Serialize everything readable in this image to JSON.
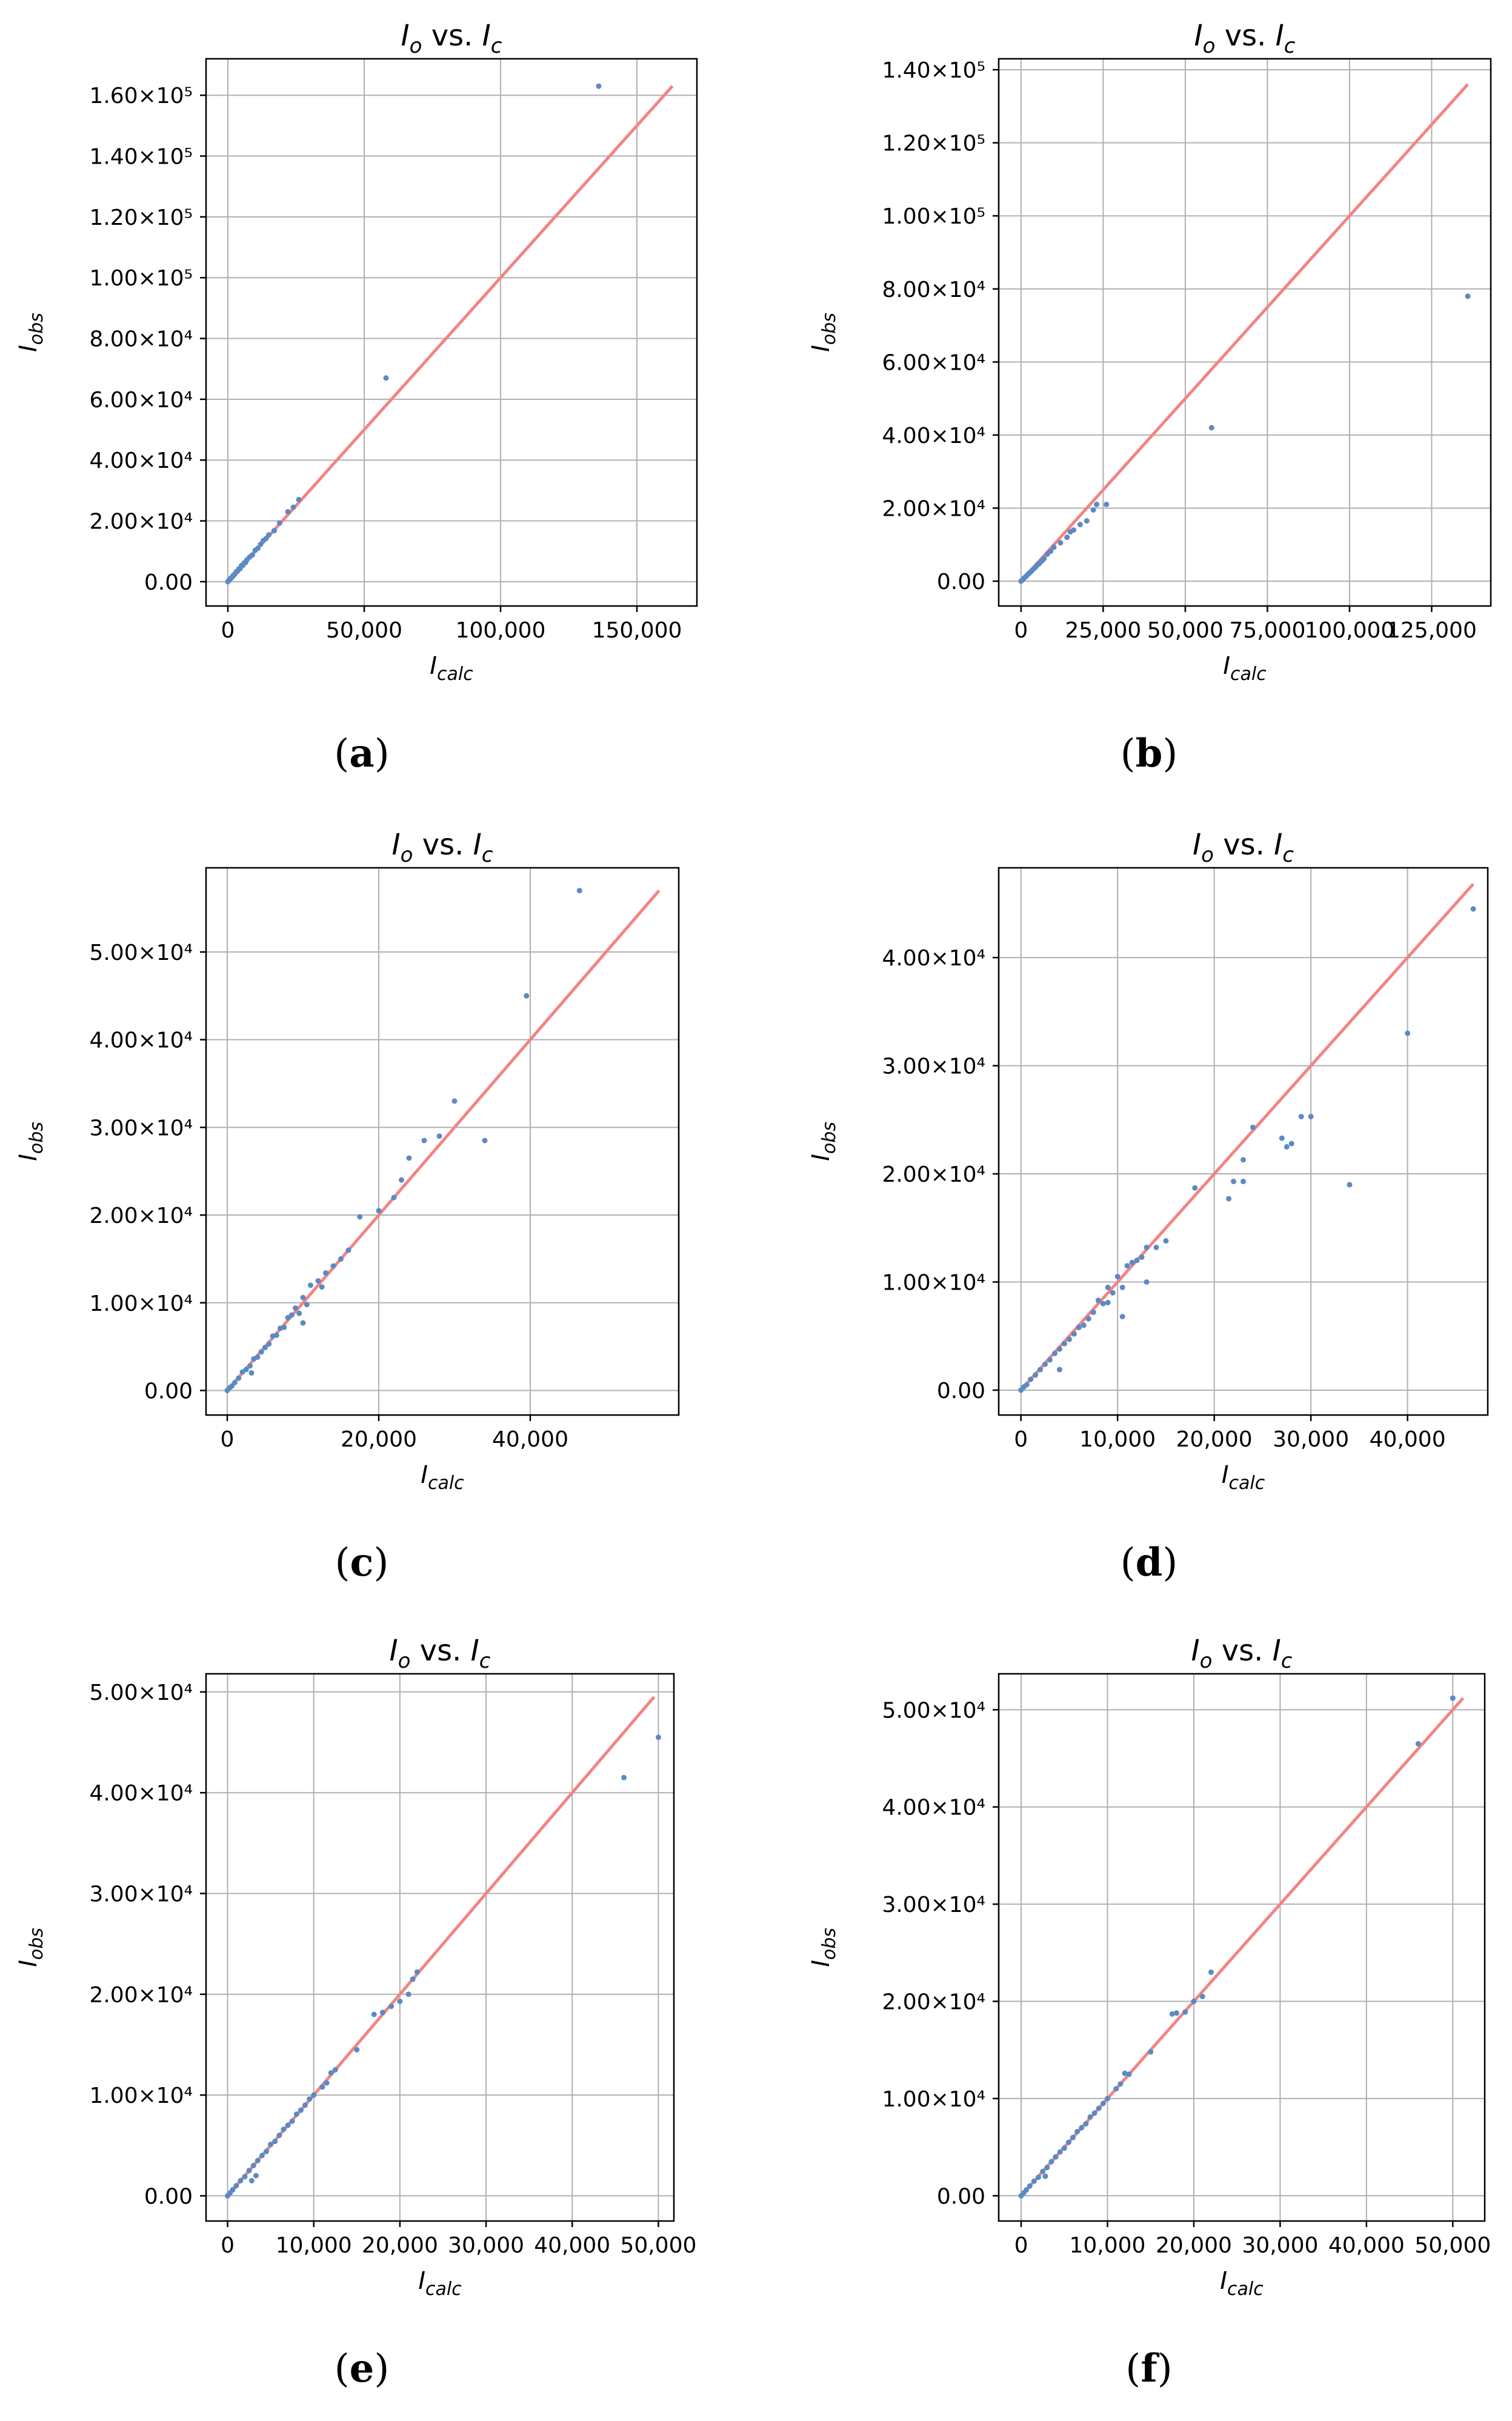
{
  "figure": {
    "panels": [
      "a",
      "b",
      "c",
      "d",
      "e",
      "f"
    ]
  },
  "style": {
    "point_color": "#5b8ac4",
    "line_color": "#f28482",
    "grid_color": "#b0b0b0",
    "axis_color": "#000000"
  },
  "chart_data": [
    {
      "label": "(a)",
      "type": "scatter",
      "title_main": "I",
      "title_main_sub": "o",
      "title_vs": " vs. ",
      "title_second": "I",
      "title_second_sub": "c",
      "xlabel": "I",
      "xlabel_sub": "calc",
      "ylabel": "I",
      "ylabel_sub": "obs",
      "xlim": [
        -8000,
        172000
      ],
      "ylim": [
        -8000,
        172000
      ],
      "xticks": [
        0,
        50000,
        100000,
        150000
      ],
      "xtick_labels": [
        "0",
        "50,000",
        "100,000",
        "150,000"
      ],
      "yticks": [
        0,
        20000,
        40000,
        60000,
        80000,
        100000,
        120000,
        140000,
        160000
      ],
      "ytick_labels": [
        "0.00",
        "2.00×10⁴",
        "4.00×10⁴",
        "6.00×10⁴",
        "8.00×10⁴",
        "1.00×10⁵",
        "1.20×10⁵",
        "1.40×10⁵",
        "1.60×10⁵"
      ],
      "grid": true,
      "reference_line": [
        [
          0,
          0
        ],
        [
          163000,
          163000
        ]
      ],
      "points": [
        [
          0,
          0
        ],
        [
          400,
          500
        ],
        [
          800,
          700
        ],
        [
          1200,
          1300
        ],
        [
          1600,
          1500
        ],
        [
          2000,
          2100
        ],
        [
          2500,
          2400
        ],
        [
          3000,
          3200
        ],
        [
          3500,
          3400
        ],
        [
          4000,
          4200
        ],
        [
          4500,
          4300
        ],
        [
          5000,
          5300
        ],
        [
          5500,
          5400
        ],
        [
          6000,
          6200
        ],
        [
          6500,
          6300
        ],
        [
          7000,
          7200
        ],
        [
          8000,
          8100
        ],
        [
          9000,
          8800
        ],
        [
          10000,
          10300
        ],
        [
          11000,
          11000
        ],
        [
          12000,
          12300
        ],
        [
          13000,
          13500
        ],
        [
          14000,
          14200
        ],
        [
          15000,
          15400
        ],
        [
          17000,
          16800
        ],
        [
          19000,
          19300
        ],
        [
          22000,
          23000
        ],
        [
          24000,
          24500
        ],
        [
          26000,
          27000
        ],
        [
          58000,
          67000
        ],
        [
          136000,
          163000
        ]
      ]
    },
    {
      "label": "(b)",
      "type": "scatter",
      "title_main": "I",
      "title_main_sub": "o",
      "title_vs": " vs. ",
      "title_second": "I",
      "title_second_sub": "c",
      "xlabel": "I",
      "xlabel_sub": "calc",
      "ylabel": "I",
      "ylabel_sub": "obs",
      "xlim": [
        -6800,
        143000
      ],
      "ylim": [
        -6800,
        143000
      ],
      "xticks": [
        0,
        25000,
        50000,
        75000,
        100000,
        125000
      ],
      "xtick_labels": [
        "0",
        "25,000",
        "50,000",
        "75,000",
        "100,000",
        "125,000"
      ],
      "yticks": [
        0,
        20000,
        40000,
        60000,
        80000,
        100000,
        120000,
        140000
      ],
      "ytick_labels": [
        "0.00",
        "2.00×10⁴",
        "4.00×10⁴",
        "6.00×10⁴",
        "8.00×10⁴",
        "1.00×10⁵",
        "1.20×10⁵",
        "1.40×10⁵"
      ],
      "grid": true,
      "reference_line": [
        [
          0,
          0
        ],
        [
          136000,
          136000
        ]
      ],
      "points": [
        [
          0,
          0
        ],
        [
          500,
          400
        ],
        [
          1000,
          900
        ],
        [
          1500,
          1300
        ],
        [
          2000,
          1800
        ],
        [
          2500,
          2200
        ],
        [
          3000,
          2600
        ],
        [
          3500,
          3100
        ],
        [
          4000,
          3500
        ],
        [
          4500,
          3900
        ],
        [
          5000,
          4500
        ],
        [
          5500,
          4800
        ],
        [
          6000,
          5300
        ],
        [
          6500,
          5700
        ],
        [
          7000,
          6200
        ],
        [
          8000,
          7400
        ],
        [
          9000,
          8200
        ],
        [
          10000,
          9300
        ],
        [
          12000,
          10500
        ],
        [
          14000,
          12000
        ],
        [
          15000,
          13500
        ],
        [
          16000,
          14000
        ],
        [
          18000,
          15500
        ],
        [
          20000,
          16500
        ],
        [
          22000,
          19500
        ],
        [
          23000,
          21000
        ],
        [
          26000,
          21000
        ],
        [
          58000,
          42000
        ],
        [
          136000,
          78000
        ]
      ]
    },
    {
      "label": "(c)",
      "type": "scatter",
      "title_main": "I",
      "title_main_sub": "o",
      "title_vs": " vs. ",
      "title_second": "I",
      "title_second_sub": "c",
      "xlabel": "I",
      "xlabel_sub": "calc",
      "ylabel": "I",
      "ylabel_sub": "obs",
      "xlim": [
        -2800,
        59600
      ],
      "ylim": [
        -2800,
        59600
      ],
      "xticks": [
        0,
        20000,
        40000
      ],
      "xtick_labels": [
        "0",
        "20,000",
        "40,000"
      ],
      "yticks": [
        0,
        10000,
        20000,
        30000,
        40000,
        50000
      ],
      "ytick_labels": [
        "0.00",
        "1.00×10⁴",
        "2.00×10⁴",
        "3.00×10⁴",
        "4.00×10⁴",
        "5.00×10⁴"
      ],
      "grid": true,
      "reference_line": [
        [
          0,
          0
        ],
        [
          57000,
          57000
        ]
      ],
      "points": [
        [
          0,
          0
        ],
        [
          300,
          300
        ],
        [
          600,
          500
        ],
        [
          1000,
          900
        ],
        [
          1500,
          1400
        ],
        [
          2000,
          2100
        ],
        [
          2500,
          2400
        ],
        [
          3000,
          2800
        ],
        [
          3500,
          3600
        ],
        [
          4000,
          3800
        ],
        [
          4500,
          4400
        ],
        [
          5000,
          4900
        ],
        [
          5500,
          5300
        ],
        [
          6000,
          6200
        ],
        [
          6500,
          6300
        ],
        [
          7000,
          7100
        ],
        [
          7500,
          7200
        ],
        [
          8000,
          8300
        ],
        [
          8500,
          8600
        ],
        [
          9000,
          9400
        ],
        [
          9500,
          8800
        ],
        [
          10000,
          10600
        ],
        [
          10500,
          9800
        ],
        [
          11000,
          12000
        ],
        [
          12000,
          12500
        ],
        [
          12500,
          11800
        ],
        [
          13000,
          13400
        ],
        [
          14000,
          14200
        ],
        [
          15000,
          15000
        ],
        [
          17500,
          19800
        ],
        [
          20000,
          20500
        ],
        [
          22000,
          22000
        ],
        [
          23000,
          24000
        ],
        [
          24000,
          26500
        ],
        [
          26000,
          28500
        ],
        [
          28000,
          29000
        ],
        [
          30000,
          33000
        ],
        [
          34000,
          28500
        ],
        [
          39500,
          45000
        ],
        [
          46500,
          57000
        ],
        [
          3200,
          2000
        ],
        [
          10000,
          7700
        ],
        [
          16000,
          16000
        ]
      ]
    },
    {
      "label": "(d)",
      "type": "scatter",
      "title_main": "I",
      "title_main_sub": "o",
      "title_vs": " vs. ",
      "title_second": "I",
      "title_second_sub": "c",
      "xlabel": "I",
      "xlabel_sub": "calc",
      "ylabel": "I",
      "ylabel_sub": "obs",
      "xlim": [
        -2300,
        48300
      ],
      "ylim": [
        -2300,
        48300
      ],
      "xticks": [
        0,
        10000,
        20000,
        30000,
        40000
      ],
      "xtick_labels": [
        "0",
        "10,000",
        "20,000",
        "30,000",
        "40,000"
      ],
      "yticks": [
        0,
        10000,
        20000,
        30000,
        40000
      ],
      "ytick_labels": [
        "0.00",
        "1.00×10⁴",
        "2.00×10⁴",
        "3.00×10⁴",
        "4.00×10⁴"
      ],
      "grid": true,
      "reference_line": [
        [
          0,
          0
        ],
        [
          46800,
          46800
        ]
      ],
      "points": [
        [
          0,
          0
        ],
        [
          300,
          300
        ],
        [
          600,
          500
        ],
        [
          1000,
          1000
        ],
        [
          1500,
          1400
        ],
        [
          2000,
          1900
        ],
        [
          2500,
          2400
        ],
        [
          3000,
          2800
        ],
        [
          3500,
          3400
        ],
        [
          4000,
          3800
        ],
        [
          4500,
          4300
        ],
        [
          5000,
          4700
        ],
        [
          5500,
          5200
        ],
        [
          6000,
          5800
        ],
        [
          6500,
          6000
        ],
        [
          7000,
          6600
        ],
        [
          7500,
          7200
        ],
        [
          8000,
          8300
        ],
        [
          8500,
          8000
        ],
        [
          9000,
          9500
        ],
        [
          9500,
          9000
        ],
        [
          10000,
          10500
        ],
        [
          10500,
          9500
        ],
        [
          11000,
          11500
        ],
        [
          11500,
          11800
        ],
        [
          12000,
          12000
        ],
        [
          12500,
          12300
        ],
        [
          13000,
          13200
        ],
        [
          14000,
          13200
        ],
        [
          15000,
          13800
        ],
        [
          18000,
          18700
        ],
        [
          21500,
          17700
        ],
        [
          22000,
          19300
        ],
        [
          23000,
          19300
        ],
        [
          23000,
          21300
        ],
        [
          24000,
          24300
        ],
        [
          27000,
          23300
        ],
        [
          27500,
          22500
        ],
        [
          28000,
          22800
        ],
        [
          29000,
          25300
        ],
        [
          30000,
          25300
        ],
        [
          34000,
          19000
        ],
        [
          40000,
          33000
        ],
        [
          46800,
          44500
        ],
        [
          4000,
          1900
        ],
        [
          9000,
          8100
        ],
        [
          13000,
          10000
        ],
        [
          10500,
          6800
        ]
      ]
    },
    {
      "label": "(e)",
      "type": "scatter",
      "title_main": "I",
      "title_main_sub": "o",
      "title_vs": " vs. ",
      "title_second": "I",
      "title_second_sub": "c",
      "xlabel": "I",
      "xlabel_sub": "calc",
      "ylabel": "I",
      "ylabel_sub": "obs",
      "xlim": [
        -2500,
        51800
      ],
      "ylim": [
        -2500,
        51800
      ],
      "xticks": [
        0,
        10000,
        20000,
        30000,
        40000,
        50000
      ],
      "xtick_labels": [
        "0",
        "10,000",
        "20,000",
        "30,000",
        "40,000",
        "50,000"
      ],
      "yticks": [
        0,
        10000,
        20000,
        30000,
        40000,
        50000
      ],
      "ytick_labels": [
        "0.00",
        "1.00×10⁴",
        "2.00×10⁴",
        "3.00×10⁴",
        "4.00×10⁴",
        "5.00×10⁴"
      ],
      "grid": true,
      "reference_line": [
        [
          0,
          0
        ],
        [
          49500,
          49500
        ]
      ],
      "points": [
        [
          0,
          0
        ],
        [
          300,
          300
        ],
        [
          600,
          600
        ],
        [
          1000,
          1000
        ],
        [
          1500,
          1500
        ],
        [
          2000,
          1900
        ],
        [
          2500,
          2500
        ],
        [
          3000,
          3000
        ],
        [
          3500,
          3500
        ],
        [
          4000,
          4000
        ],
        [
          4500,
          4400
        ],
        [
          5000,
          5100
        ],
        [
          5500,
          5400
        ],
        [
          6000,
          6000
        ],
        [
          6500,
          6600
        ],
        [
          7000,
          7000
        ],
        [
          7500,
          7400
        ],
        [
          8000,
          8100
        ],
        [
          8500,
          8500
        ],
        [
          9000,
          9000
        ],
        [
          9500,
          9600
        ],
        [
          10000,
          10000
        ],
        [
          11000,
          10800
        ],
        [
          11500,
          11200
        ],
        [
          12000,
          12200
        ],
        [
          12500,
          12500
        ],
        [
          15000,
          14500
        ],
        [
          17000,
          18000
        ],
        [
          18000,
          18200
        ],
        [
          19000,
          18800
        ],
        [
          20000,
          19300
        ],
        [
          21000,
          20000
        ],
        [
          21500,
          21500
        ],
        [
          22000,
          22200
        ],
        [
          46000,
          41500
        ],
        [
          50000,
          45500
        ],
        [
          2800,
          1500
        ],
        [
          3300,
          2000
        ]
      ]
    },
    {
      "label": "(f)",
      "type": "scatter",
      "title_main": "I",
      "title_main_sub": "o",
      "title_vs": " vs. ",
      "title_second": "I",
      "title_second_sub": "c",
      "xlabel": "I",
      "xlabel_sub": "calc",
      "ylabel": "I",
      "ylabel_sub": "obs",
      "xlim": [
        -2600,
        53700
      ],
      "ylim": [
        -2600,
        53700
      ],
      "xticks": [
        0,
        10000,
        20000,
        30000,
        40000,
        50000
      ],
      "xtick_labels": [
        "0",
        "10,000",
        "20,000",
        "30,000",
        "40,000",
        "50,000"
      ],
      "yticks": [
        0,
        10000,
        20000,
        30000,
        40000,
        50000
      ],
      "ytick_labels": [
        "0.00",
        "1.00×10⁴",
        "2.00×10⁴",
        "3.00×10⁴",
        "4.00×10⁴",
        "5.00×10⁴"
      ],
      "grid": true,
      "reference_line": [
        [
          0,
          0
        ],
        [
          51200,
          51200
        ]
      ],
      "points": [
        [
          0,
          0
        ],
        [
          300,
          300
        ],
        [
          600,
          600
        ],
        [
          1000,
          1000
        ],
        [
          1500,
          1500
        ],
        [
          2000,
          1900
        ],
        [
          2500,
          2500
        ],
        [
          3000,
          2900
        ],
        [
          3500,
          3500
        ],
        [
          4000,
          4000
        ],
        [
          4500,
          4500
        ],
        [
          5000,
          4900
        ],
        [
          5500,
          5500
        ],
        [
          6000,
          6000
        ],
        [
          6500,
          6600
        ],
        [
          7000,
          7000
        ],
        [
          7500,
          7400
        ],
        [
          8000,
          8100
        ],
        [
          8500,
          8500
        ],
        [
          9000,
          9000
        ],
        [
          9500,
          9500
        ],
        [
          10000,
          10000
        ],
        [
          11000,
          11000
        ],
        [
          11500,
          11500
        ],
        [
          12000,
          12600
        ],
        [
          12500,
          12500
        ],
        [
          15000,
          14800
        ],
        [
          17500,
          18700
        ],
        [
          18000,
          18800
        ],
        [
          19000,
          18900
        ],
        [
          20000,
          20000
        ],
        [
          21000,
          20500
        ],
        [
          22000,
          23000
        ],
        [
          46000,
          46500
        ],
        [
          50000,
          51200
        ],
        [
          2800,
          2000
        ]
      ]
    }
  ]
}
